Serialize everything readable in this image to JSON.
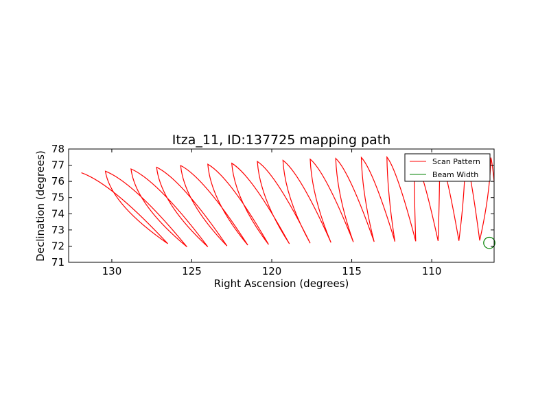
{
  "chart_data": {
    "type": "line",
    "title": "Itza_11, ID:137725 mapping path",
    "xlabel": "Right Ascension (degrees)",
    "ylabel": "Declination (degrees)",
    "xlim": [
      132.7,
      106.1
    ],
    "ylim": [
      71,
      78
    ],
    "x_ticks": [
      "130",
      "125",
      "120",
      "115",
      "110"
    ],
    "y_ticks": [
      "71",
      "72",
      "73",
      "74",
      "75",
      "76",
      "77",
      "78"
    ],
    "grid": false,
    "legend_position": "top-right",
    "legend": [
      {
        "label": "Scan Pattern",
        "color": "#ff0000"
      },
      {
        "label": "Beam Width",
        "color": "#008000"
      }
    ],
    "series": [
      {
        "name": "Scan Pattern",
        "color": "#ff0000",
        "scan_top_points": [
          [
            131.9,
            76.53
          ],
          [
            130.4,
            76.63
          ],
          [
            128.8,
            76.77
          ],
          [
            127.2,
            76.87
          ],
          [
            125.7,
            76.98
          ],
          [
            124.0,
            77.06
          ],
          [
            122.5,
            77.12
          ],
          [
            120.9,
            77.23
          ],
          [
            119.3,
            77.3
          ],
          [
            117.6,
            77.37
          ],
          [
            116.0,
            77.42
          ],
          [
            114.4,
            77.48
          ],
          [
            112.8,
            77.5
          ],
          [
            111.1,
            77.52
          ],
          [
            109.5,
            77.53
          ],
          [
            107.9,
            77.51
          ],
          [
            106.3,
            77.47
          ]
        ],
        "scan_bottom_points": [
          [
            126.5,
            72.15
          ],
          [
            125.3,
            71.95
          ],
          [
            124.0,
            71.96
          ],
          [
            122.8,
            72.01
          ],
          [
            121.5,
            72.06
          ],
          [
            120.2,
            72.1
          ],
          [
            118.9,
            72.14
          ],
          [
            117.6,
            72.18
          ],
          [
            116.3,
            72.22
          ],
          [
            114.9,
            72.25
          ],
          [
            113.6,
            72.27
          ],
          [
            112.3,
            72.28
          ],
          [
            111.0,
            72.3
          ],
          [
            109.6,
            72.32
          ],
          [
            108.3,
            72.33
          ],
          [
            107.0,
            72.35
          ]
        ],
        "scan_end_point": [
          106.1,
          76.0
        ]
      },
      {
        "name": "Beam Width",
        "color": "#008000",
        "center": [
          106.4,
          72.2
        ],
        "diameter_deg": 0.7
      }
    ]
  }
}
